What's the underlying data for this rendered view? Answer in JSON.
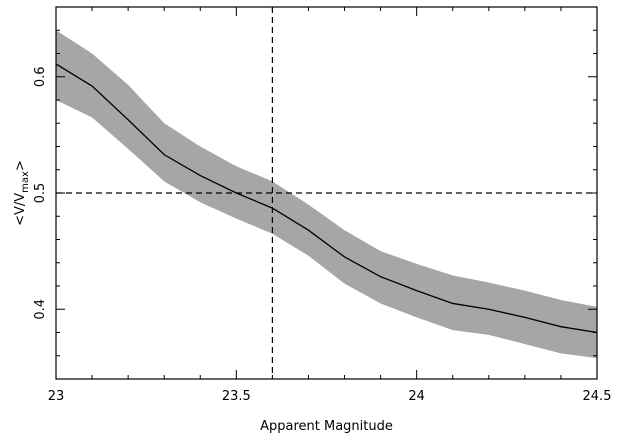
{
  "chart_data": {
    "type": "line",
    "xlabel": "Apparent Magnitude",
    "ylabel_parts": {
      "prefix": "<V/V",
      "sub": "max",
      "suffix": ">"
    },
    "xlim": [
      23.0,
      24.5
    ],
    "ylim": [
      0.34,
      0.66
    ],
    "xticks": [
      23,
      23.5,
      24,
      24.5
    ],
    "xtick_labels": [
      "23",
      "23.5",
      "24",
      "24.5"
    ],
    "yticks": [
      0.4,
      0.5,
      0.6
    ],
    "ytick_labels": [
      "0.4",
      "0.5",
      "0.6"
    ],
    "x_minor_step": 0.1,
    "y_minor_step": 0.02,
    "grid": false,
    "reference_lines": {
      "x": 23.6,
      "y": 0.5,
      "style": "dashed"
    },
    "series": [
      {
        "x": [
          23.0,
          23.1,
          23.2,
          23.3,
          23.4,
          23.5,
          23.6,
          23.7,
          23.8,
          23.9,
          24.0,
          24.1,
          24.2,
          24.3,
          24.4,
          24.5
        ],
        "y": [
          0.611,
          0.592,
          0.563,
          0.533,
          0.515,
          0.5,
          0.487,
          0.468,
          0.445,
          0.428,
          0.416,
          0.405,
          0.4,
          0.393,
          0.385,
          0.38
        ],
        "lower": [
          0.58,
          0.565,
          0.538,
          0.51,
          0.492,
          0.478,
          0.465,
          0.446,
          0.422,
          0.405,
          0.393,
          0.382,
          0.378,
          0.37,
          0.362,
          0.358
        ],
        "upper": [
          0.64,
          0.62,
          0.593,
          0.56,
          0.54,
          0.523,
          0.51,
          0.49,
          0.468,
          0.45,
          0.439,
          0.429,
          0.423,
          0.416,
          0.408,
          0.402
        ]
      }
    ],
    "colors": {
      "band": "#a6a6a6",
      "line": "#000000"
    }
  }
}
